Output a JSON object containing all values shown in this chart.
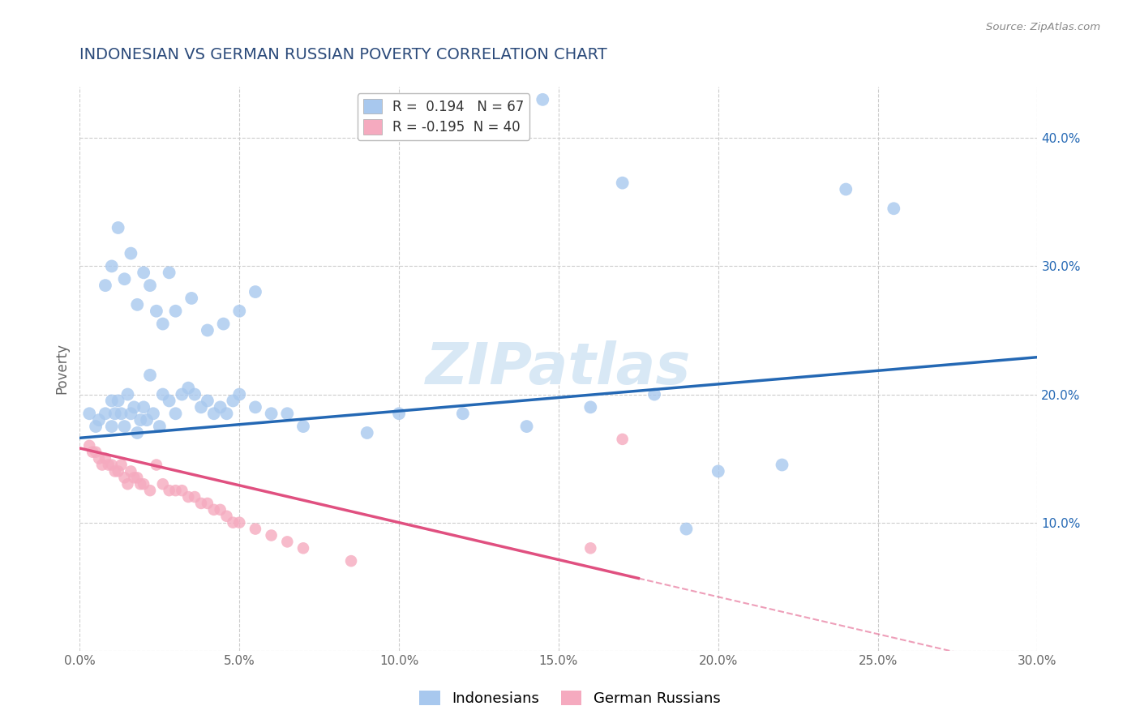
{
  "title": "INDONESIAN VS GERMAN RUSSIAN POVERTY CORRELATION CHART",
  "source": "Source: ZipAtlas.com",
  "xlabel_indonesian": "Indonesians",
  "xlabel_german_russian": "German Russians",
  "ylabel": "Poverty",
  "watermark": "ZIPatlas",
  "xlim": [
    0.0,
    0.3
  ],
  "ylim": [
    0.0,
    0.44
  ],
  "xticks": [
    0.0,
    0.05,
    0.1,
    0.15,
    0.2,
    0.25,
    0.3
  ],
  "yticks": [
    0.0,
    0.1,
    0.2,
    0.3,
    0.4
  ],
  "R_indonesian": 0.194,
  "N_indonesian": 67,
  "R_german": -0.195,
  "N_german": 40,
  "blue_color": "#A8C8EE",
  "pink_color": "#F5AABF",
  "blue_line_color": "#2468B4",
  "pink_line_color": "#E05080",
  "background_color": "#FFFFFF",
  "grid_color": "#CCCCCC",
  "title_color": "#2B4A7A",
  "source_color": "#888888",
  "watermark_color": "#D8E8F5",
  "blue_intercept": 0.166,
  "blue_slope": 0.21,
  "pink_intercept": 0.158,
  "pink_slope": -0.58,
  "indonesian_x": [
    0.003,
    0.005,
    0.006,
    0.008,
    0.01,
    0.01,
    0.011,
    0.012,
    0.013,
    0.014,
    0.015,
    0.016,
    0.017,
    0.018,
    0.019,
    0.02,
    0.021,
    0.022,
    0.023,
    0.025,
    0.026,
    0.028,
    0.03,
    0.032,
    0.034,
    0.036,
    0.038,
    0.04,
    0.042,
    0.044,
    0.046,
    0.048,
    0.05,
    0.055,
    0.06,
    0.065,
    0.07,
    0.008,
    0.01,
    0.012,
    0.014,
    0.016,
    0.018,
    0.02,
    0.022,
    0.024,
    0.026,
    0.028,
    0.03,
    0.035,
    0.04,
    0.045,
    0.05,
    0.055,
    0.09,
    0.1,
    0.12,
    0.14,
    0.16,
    0.18,
    0.2,
    0.22,
    0.17,
    0.19,
    0.24,
    0.255,
    0.145
  ],
  "indonesian_y": [
    0.185,
    0.175,
    0.18,
    0.185,
    0.195,
    0.175,
    0.185,
    0.195,
    0.185,
    0.175,
    0.2,
    0.185,
    0.19,
    0.17,
    0.18,
    0.19,
    0.18,
    0.215,
    0.185,
    0.175,
    0.2,
    0.195,
    0.185,
    0.2,
    0.205,
    0.2,
    0.19,
    0.195,
    0.185,
    0.19,
    0.185,
    0.195,
    0.2,
    0.19,
    0.185,
    0.185,
    0.175,
    0.285,
    0.3,
    0.33,
    0.29,
    0.31,
    0.27,
    0.295,
    0.285,
    0.265,
    0.255,
    0.295,
    0.265,
    0.275,
    0.25,
    0.255,
    0.265,
    0.28,
    0.17,
    0.185,
    0.185,
    0.175,
    0.19,
    0.2,
    0.14,
    0.145,
    0.365,
    0.095,
    0.36,
    0.345,
    0.43
  ],
  "german_x": [
    0.003,
    0.004,
    0.005,
    0.006,
    0.007,
    0.008,
    0.009,
    0.01,
    0.011,
    0.012,
    0.013,
    0.014,
    0.015,
    0.016,
    0.017,
    0.018,
    0.019,
    0.02,
    0.022,
    0.024,
    0.026,
    0.028,
    0.03,
    0.032,
    0.034,
    0.036,
    0.038,
    0.04,
    0.042,
    0.044,
    0.046,
    0.048,
    0.05,
    0.055,
    0.06,
    0.065,
    0.07,
    0.085,
    0.16,
    0.17
  ],
  "german_y": [
    0.16,
    0.155,
    0.155,
    0.15,
    0.145,
    0.15,
    0.145,
    0.145,
    0.14,
    0.14,
    0.145,
    0.135,
    0.13,
    0.14,
    0.135,
    0.135,
    0.13,
    0.13,
    0.125,
    0.145,
    0.13,
    0.125,
    0.125,
    0.125,
    0.12,
    0.12,
    0.115,
    0.115,
    0.11,
    0.11,
    0.105,
    0.1,
    0.1,
    0.095,
    0.09,
    0.085,
    0.08,
    0.07,
    0.08,
    0.165
  ]
}
